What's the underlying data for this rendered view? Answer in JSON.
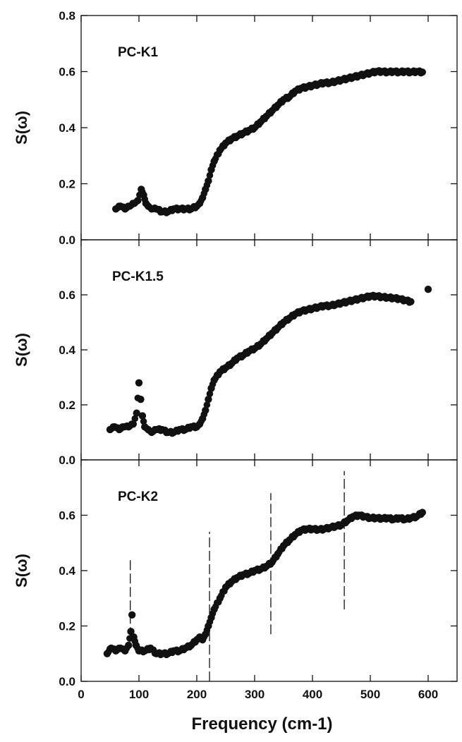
{
  "chart_data": [
    {
      "type": "scatter",
      "panel_label": "PC-K1",
      "ylabel": "S(ω)",
      "xlim": [
        0,
        650
      ],
      "ylim": [
        0.0,
        0.8
      ],
      "yticks": [
        "0.0",
        "0.2",
        "0.4",
        "0.6",
        "0.8"
      ],
      "grid": false,
      "series": [
        {
          "x": [
            60,
            68,
            76,
            84,
            92,
            98,
            104,
            108,
            112,
            116,
            122,
            130,
            140,
            150,
            160,
            170,
            180,
            190,
            200,
            205,
            210,
            215,
            220,
            225,
            230,
            240,
            250,
            260,
            270,
            280,
            290,
            300,
            310,
            320,
            330,
            340,
            350,
            360,
            370,
            380,
            390,
            400,
            410,
            420,
            430,
            440,
            450,
            460,
            470,
            480,
            490,
            500,
            510,
            520,
            530,
            540,
            550,
            560,
            570,
            580,
            590
          ],
          "y": [
            0.11,
            0.12,
            0.11,
            0.12,
            0.13,
            0.14,
            0.18,
            0.16,
            0.13,
            0.12,
            0.11,
            0.11,
            0.1,
            0.1,
            0.11,
            0.11,
            0.11,
            0.11,
            0.12,
            0.13,
            0.15,
            0.18,
            0.21,
            0.25,
            0.28,
            0.32,
            0.345,
            0.36,
            0.37,
            0.38,
            0.39,
            0.4,
            0.42,
            0.44,
            0.46,
            0.48,
            0.5,
            0.51,
            0.53,
            0.54,
            0.545,
            0.55,
            0.555,
            0.56,
            0.56,
            0.565,
            0.57,
            0.575,
            0.58,
            0.585,
            0.59,
            0.595,
            0.6,
            0.6,
            0.598,
            0.6,
            0.598,
            0.6,
            0.598,
            0.6,
            0.598
          ]
        }
      ]
    },
    {
      "type": "scatter",
      "panel_label": "PC-K1.5",
      "ylabel": "S(ω)",
      "xlim": [
        0,
        650
      ],
      "ylim": [
        0.0,
        0.8
      ],
      "yticks": [
        "0.0",
        "0.2",
        "0.4",
        "0.6"
      ],
      "grid": false,
      "series": [
        {
          "x": [
            50,
            58,
            66,
            74,
            82,
            90,
            96,
            100,
            103,
            106,
            110,
            116,
            122,
            130,
            140,
            150,
            160,
            170,
            180,
            190,
            200,
            205,
            210,
            215,
            220,
            225,
            230,
            240,
            250,
            260,
            270,
            280,
            290,
            300,
            310,
            320,
            330,
            340,
            350,
            360,
            370,
            380,
            390,
            400,
            410,
            420,
            430,
            440,
            450,
            460,
            470,
            480,
            490,
            500,
            510,
            520,
            530,
            540,
            550,
            560,
            570,
            600
          ],
          "y": [
            0.11,
            0.12,
            0.11,
            0.12,
            0.12,
            0.13,
            0.17,
            0.28,
            0.22,
            0.16,
            0.12,
            0.11,
            0.1,
            0.11,
            0.11,
            0.1,
            0.1,
            0.11,
            0.11,
            0.12,
            0.12,
            0.13,
            0.15,
            0.18,
            0.22,
            0.26,
            0.29,
            0.32,
            0.335,
            0.35,
            0.37,
            0.38,
            0.395,
            0.405,
            0.42,
            0.44,
            0.46,
            0.48,
            0.5,
            0.515,
            0.53,
            0.54,
            0.545,
            0.55,
            0.555,
            0.56,
            0.56,
            0.565,
            0.57,
            0.575,
            0.58,
            0.585,
            0.59,
            0.595,
            0.595,
            0.592,
            0.59,
            0.588,
            0.585,
            0.58,
            0.575,
            0.62
          ]
        }
      ]
    },
    {
      "type": "scatter",
      "panel_label": "PC-K2",
      "ylabel": "S(ω)",
      "xlabel": "Frequency (cm-1)",
      "xlim": [
        0,
        650
      ],
      "ylim": [
        0.0,
        0.8
      ],
      "xticks": [
        "0",
        "100",
        "200",
        "300",
        "400",
        "500",
        "600"
      ],
      "yticks": [
        "0.0",
        "0.2",
        "0.4",
        "0.6"
      ],
      "grid": false,
      "vertical_markers_x": [
        85,
        222,
        328,
        455
      ],
      "series": [
        {
          "x": [
            45,
            52,
            60,
            68,
            76,
            82,
            86,
            88,
            91,
            95,
            100,
            110,
            120,
            130,
            140,
            150,
            160,
            170,
            180,
            190,
            200,
            205,
            210,
            215,
            220,
            225,
            230,
            240,
            250,
            260,
            270,
            280,
            290,
            300,
            310,
            320,
            330,
            340,
            350,
            360,
            370,
            380,
            390,
            400,
            410,
            420,
            430,
            440,
            450,
            460,
            470,
            480,
            490,
            500,
            510,
            520,
            530,
            540,
            550,
            560,
            570,
            580,
            590
          ],
          "y": [
            0.1,
            0.12,
            0.11,
            0.12,
            0.11,
            0.13,
            0.18,
            0.24,
            0.16,
            0.13,
            0.11,
            0.11,
            0.12,
            0.1,
            0.1,
            0.1,
            0.11,
            0.11,
            0.12,
            0.13,
            0.15,
            0.16,
            0.15,
            0.17,
            0.2,
            0.23,
            0.26,
            0.3,
            0.34,
            0.36,
            0.375,
            0.385,
            0.39,
            0.4,
            0.405,
            0.415,
            0.43,
            0.46,
            0.49,
            0.51,
            0.53,
            0.545,
            0.55,
            0.55,
            0.548,
            0.55,
            0.555,
            0.56,
            0.565,
            0.58,
            0.595,
            0.6,
            0.595,
            0.59,
            0.59,
            0.588,
            0.59,
            0.585,
            0.59,
            0.585,
            0.59,
            0.595,
            0.61
          ]
        }
      ]
    }
  ]
}
